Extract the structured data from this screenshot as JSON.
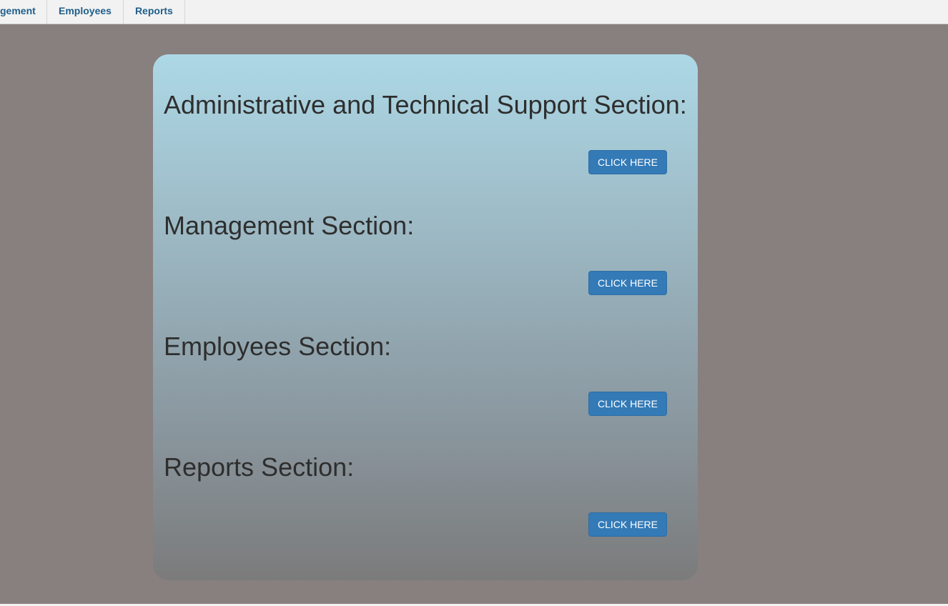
{
  "nav": {
    "items": [
      {
        "label": "gement"
      },
      {
        "label": "Employees"
      },
      {
        "label": "Reports"
      }
    ]
  },
  "sections": [
    {
      "title": "Administrative and Technical Support Section:",
      "button": "CLICK HERE"
    },
    {
      "title": "Management Section:",
      "button": "CLICK HERE"
    },
    {
      "title": "Employees Section:",
      "button": "CLICK HERE"
    },
    {
      "title": "Reports Section:",
      "button": "CLICK HERE"
    }
  ],
  "colors": {
    "background": "#887f7f",
    "button": "#337ab7",
    "nav_text": "#1f5f8b",
    "card_top": "#add8e6",
    "card_bottom": "#7b7b7b"
  }
}
